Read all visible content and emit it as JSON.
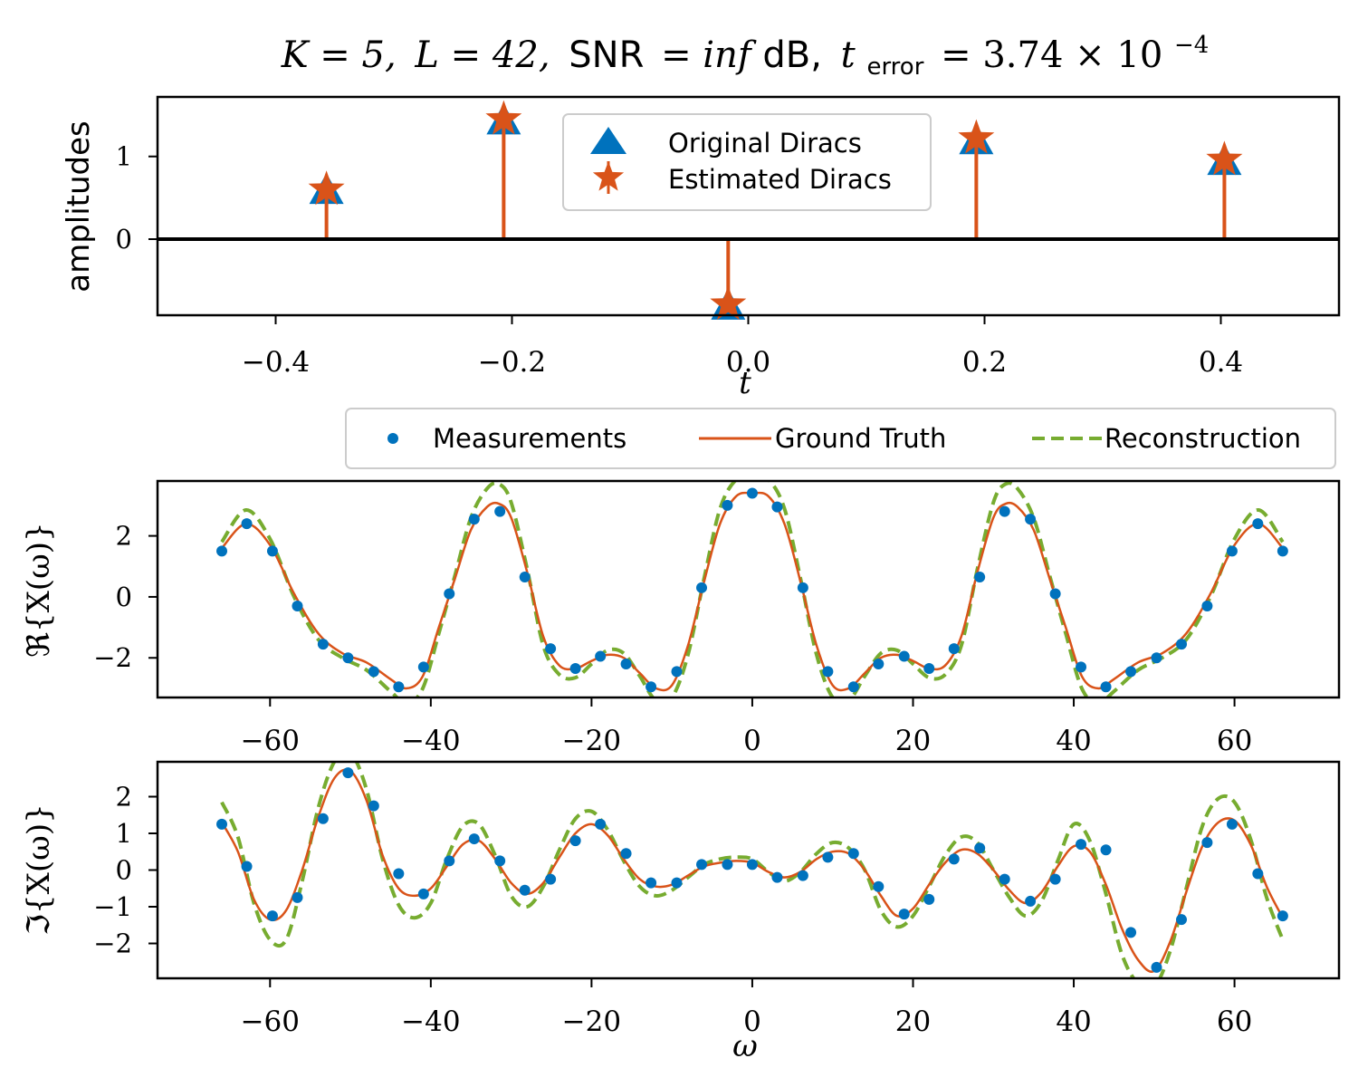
{
  "title": {
    "k_part": "K = 5,",
    "l_part": "L = 42,",
    "snr_label": "SNR",
    "snr_value": "= inf",
    "snr_unit": "dB,",
    "terr_var": "t",
    "terr_sub": "error",
    "terr_val": "= 3.74 × 10",
    "terr_exp": "−4"
  },
  "colors": {
    "original": "#0072BD",
    "estimated": "#D95319",
    "measurements": "#0072BD",
    "ground_truth": "#D95319",
    "reconstruction": "#77AC30"
  },
  "chart_data": [
    {
      "type": "stem",
      "xlabel": "t",
      "ylabel": "amplitudes",
      "xlim": [
        -0.5,
        0.5
      ],
      "ylim": [
        -0.92,
        1.72
      ],
      "xticks": [
        "−0.4",
        "−0.2",
        "0.0",
        "0.2",
        "0.4"
      ],
      "xtick_values": [
        -0.4,
        -0.2,
        0.0,
        0.2,
        0.4
      ],
      "yticks": [
        "0",
        "1"
      ],
      "ytick_values": [
        0,
        1
      ],
      "legend": {
        "position": "top-center",
        "entries": [
          "Original Diracs",
          "Estimated Diracs"
        ]
      },
      "series": [
        {
          "name": "Original Diracs",
          "marker": "triangle",
          "x": [
            -0.357,
            -0.207,
            -0.017,
            0.193,
            0.403
          ],
          "y": [
            0.58,
            1.42,
            -0.82,
            1.18,
            0.93
          ]
        },
        {
          "name": "Estimated Diracs",
          "marker": "star",
          "x": [
            -0.357,
            -0.207,
            -0.017,
            0.193,
            0.403
          ],
          "y": [
            0.6,
            1.45,
            -0.79,
            1.22,
            0.96
          ]
        }
      ]
    },
    {
      "type": "line",
      "xlabel": "",
      "ylabel": "ℜ{X(ω)}",
      "xlim": [
        -74,
        73
      ],
      "ylim": [
        -3.3,
        3.8
      ],
      "xticks": [
        "−60",
        "−40",
        "−20",
        "0",
        "20",
        "40",
        "60"
      ],
      "xtick_values": [
        -60,
        -40,
        -20,
        0,
        20,
        40,
        60
      ],
      "yticks": [
        "−2",
        "0",
        "2"
      ],
      "ytick_values": [
        -2,
        0,
        2
      ],
      "legend": {
        "position": "above",
        "entries": [
          "Measurements",
          "Ground Truth",
          "Reconstruction"
        ]
      },
      "series": [
        {
          "name": "Measurements",
          "x": [
            -66,
            -62.9,
            -59.7,
            -56.6,
            -53.4,
            -50.3,
            -47.1,
            -44,
            -40.9,
            -37.7,
            -34.6,
            -31.4,
            -28.3,
            -25.1,
            -22,
            -18.9,
            -15.7,
            -12.6,
            -9.4,
            -6.3,
            -3.1,
            0,
            3.1,
            6.3,
            9.4,
            12.6,
            15.7,
            18.9,
            22,
            25.1,
            28.3,
            31.4,
            34.6,
            37.7,
            40.9,
            44,
            47.1,
            50.3,
            53.4,
            56.6,
            59.7,
            62.9,
            66
          ],
          "y": [
            1.5,
            2.4,
            1.5,
            -0.3,
            -1.55,
            -2.0,
            -2.45,
            -2.95,
            -2.3,
            0.1,
            2.55,
            2.8,
            0.65,
            -1.7,
            -2.35,
            -1.95,
            -2.2,
            -2.95,
            -2.45,
            0.3,
            3.0,
            3.4,
            2.95,
            0.3,
            -2.45,
            -2.95,
            -2.2,
            -1.95,
            -2.35,
            -1.7,
            0.65,
            2.8,
            2.55,
            0.1,
            -2.3,
            -2.95,
            -2.45,
            -2.0,
            -1.55,
            -0.3,
            1.5,
            2.4,
            1.5
          ]
        },
        {
          "name": "Ground Truth",
          "x": [
            -66,
            -63,
            -60,
            -57,
            -54,
            -51,
            -48,
            -45,
            -43,
            -41,
            -39,
            -37,
            -35,
            -33,
            -31.5,
            -30,
            -28,
            -26,
            -24,
            -22,
            -20,
            -18,
            -16,
            -14,
            -12,
            -10,
            -8,
            -6,
            -4,
            -2,
            0,
            2,
            4,
            6,
            8,
            10,
            12,
            14,
            16,
            18,
            20,
            22,
            24,
            26,
            28,
            30,
            31.5,
            33,
            35,
            37,
            39,
            41,
            43,
            45,
            48,
            51,
            54,
            57,
            60,
            63,
            66
          ],
          "y": [
            1.6,
            2.4,
            1.7,
            0.1,
            -1.2,
            -1.85,
            -2.15,
            -2.7,
            -3.0,
            -2.6,
            -1.0,
            0.6,
            2.2,
            2.95,
            3.05,
            2.6,
            0.8,
            -1.3,
            -2.25,
            -2.35,
            -2.1,
            -1.9,
            -2.0,
            -2.5,
            -3.0,
            -2.9,
            -1.6,
            0.5,
            2.4,
            3.3,
            3.4,
            3.3,
            2.4,
            0.5,
            -1.6,
            -2.9,
            -3.0,
            -2.5,
            -2.0,
            -1.9,
            -2.1,
            -2.35,
            -2.25,
            -1.3,
            0.8,
            2.6,
            3.05,
            2.95,
            2.2,
            0.6,
            -1.0,
            -2.6,
            -3.0,
            -2.7,
            -2.15,
            -1.85,
            -1.2,
            0.1,
            1.7,
            2.4,
            1.6
          ]
        },
        {
          "name": "Reconstruction",
          "x": [
            -66,
            -63,
            -60,
            -57,
            -54,
            -51,
            -48,
            -45,
            -43,
            -41,
            -39,
            -37,
            -35,
            -33,
            -31.5,
            -30,
            -28,
            -26,
            -24,
            -22,
            -20,
            -18,
            -16,
            -14,
            -12,
            -10,
            -8,
            -6,
            -4,
            -2,
            0,
            2,
            4,
            6,
            8,
            10,
            12,
            14,
            16,
            18,
            20,
            22,
            24,
            26,
            28,
            30,
            31.5,
            33,
            35,
            37,
            39,
            41,
            43,
            45,
            48,
            51,
            54,
            57,
            60,
            63,
            66
          ],
          "y": [
            1.8,
            2.85,
            1.9,
            0.0,
            -1.4,
            -2.0,
            -2.4,
            -3.1,
            -3.5,
            -3.0,
            -1.2,
            0.7,
            2.6,
            3.55,
            3.7,
            3.1,
            0.9,
            -1.6,
            -2.55,
            -2.65,
            -2.2,
            -1.75,
            -1.85,
            -2.6,
            -3.4,
            -3.3,
            -1.9,
            0.6,
            2.9,
            3.85,
            4.0,
            3.85,
            2.9,
            0.6,
            -1.9,
            -3.3,
            -3.4,
            -2.6,
            -1.85,
            -1.75,
            -2.2,
            -2.65,
            -2.55,
            -1.6,
            0.9,
            3.1,
            3.7,
            3.55,
            2.6,
            0.7,
            -1.2,
            -3.0,
            -3.5,
            -3.1,
            -2.4,
            -2.0,
            -1.4,
            0.0,
            1.9,
            2.85,
            1.8
          ]
        }
      ]
    },
    {
      "type": "line",
      "xlabel": "ω",
      "ylabel": "ℑ{X(ω)}",
      "xlim": [
        -74,
        73
      ],
      "ylim": [
        -2.95,
        2.95
      ],
      "xticks": [
        "−60",
        "−40",
        "−20",
        "0",
        "20",
        "40",
        "60"
      ],
      "xtick_values": [
        -60,
        -40,
        -20,
        0,
        20,
        40,
        60
      ],
      "yticks": [
        "−2",
        "−1",
        "0",
        "1",
        "2"
      ],
      "ytick_values": [
        -2,
        -1,
        0,
        1,
        2
      ],
      "series": [
        {
          "name": "Measurements",
          "x": [
            -66,
            -62.9,
            -59.7,
            -56.6,
            -53.4,
            -50.3,
            -47.1,
            -44,
            -40.9,
            -37.7,
            -34.6,
            -31.4,
            -28.3,
            -25.1,
            -22,
            -18.9,
            -15.7,
            -12.6,
            -9.4,
            -6.3,
            -3.1,
            0,
            3.1,
            6.3,
            9.4,
            12.6,
            15.7,
            18.9,
            22,
            25.1,
            28.3,
            31.4,
            34.6,
            37.7,
            40.9,
            44,
            47.1,
            50.3,
            53.4,
            56.6,
            59.7,
            62.9,
            66
          ],
          "y": [
            1.25,
            0.1,
            -1.25,
            -0.75,
            1.4,
            2.65,
            1.75,
            -0.1,
            -0.65,
            0.25,
            0.85,
            0.25,
            -0.55,
            -0.25,
            0.8,
            1.25,
            0.45,
            -0.35,
            -0.35,
            0.15,
            0.15,
            0.15,
            -0.2,
            -0.15,
            0.35,
            0.45,
            -0.45,
            -1.2,
            -0.8,
            0.3,
            0.6,
            -0.25,
            -0.85,
            -0.25,
            0.7,
            0.55,
            -1.7,
            -2.65,
            -1.35,
            0.75,
            1.25,
            -0.1,
            -1.25
          ]
        },
        {
          "name": "Ground Truth",
          "x": [
            -66,
            -64,
            -62,
            -60,
            -58,
            -56,
            -54,
            -52,
            -50,
            -48,
            -46,
            -44,
            -42,
            -40,
            -38,
            -36,
            -34,
            -32,
            -30,
            -28,
            -26,
            -24,
            -22,
            -20,
            -18,
            -16,
            -14,
            -12,
            -10,
            -8,
            -6,
            -4,
            -2,
            0,
            2,
            4,
            6,
            8,
            10,
            12,
            14,
            16,
            18,
            20,
            22,
            24,
            26,
            28,
            30,
            32,
            34,
            36,
            38,
            40,
            42,
            44,
            46,
            48,
            50,
            52,
            54,
            56,
            58,
            60,
            62,
            64,
            66
          ],
          "y": [
            1.3,
            0.5,
            -0.8,
            -1.35,
            -1.1,
            0.0,
            1.45,
            2.5,
            2.7,
            1.9,
            0.4,
            -0.5,
            -0.7,
            -0.5,
            0.1,
            0.7,
            0.8,
            0.3,
            -0.35,
            -0.65,
            -0.35,
            0.35,
            1.0,
            1.25,
            0.95,
            0.3,
            -0.25,
            -0.45,
            -0.4,
            -0.15,
            0.1,
            0.2,
            0.25,
            0.2,
            -0.05,
            -0.2,
            -0.05,
            0.3,
            0.5,
            0.45,
            0.0,
            -0.7,
            -1.25,
            -1.05,
            -0.4,
            0.2,
            0.55,
            0.45,
            0.0,
            -0.55,
            -0.9,
            -0.6,
            0.1,
            0.65,
            0.5,
            -0.4,
            -1.6,
            -2.45,
            -2.75,
            -1.95,
            -0.6,
            0.65,
            1.3,
            1.35,
            0.7,
            -0.45,
            -1.3
          ]
        },
        {
          "name": "Reconstruction",
          "x": [
            -66,
            -64,
            -62,
            -60,
            -58,
            -56,
            -54,
            -52,
            -50,
            -48,
            -46,
            -44,
            -42,
            -40,
            -38,
            -36,
            -34,
            -32,
            -30,
            -28,
            -26,
            -24,
            -22,
            -20,
            -18,
            -16,
            -14,
            -12,
            -10,
            -8,
            -6,
            -4,
            -2,
            0,
            2,
            4,
            6,
            8,
            10,
            12,
            14,
            16,
            18,
            20,
            22,
            24,
            26,
            28,
            30,
            32,
            34,
            36,
            38,
            40,
            42,
            44,
            46,
            48,
            50,
            52,
            54,
            56,
            58,
            60,
            62,
            64,
            66
          ],
          "y": [
            1.85,
            0.9,
            -0.9,
            -1.9,
            -1.9,
            -0.3,
            1.7,
            2.95,
            3.2,
            2.2,
            0.3,
            -0.95,
            -1.3,
            -0.9,
            0.3,
            1.2,
            1.25,
            0.4,
            -0.7,
            -1.0,
            -0.45,
            0.55,
            1.4,
            1.6,
            1.1,
            0.25,
            -0.45,
            -0.7,
            -0.55,
            -0.2,
            0.15,
            0.3,
            0.35,
            0.3,
            -0.05,
            -0.3,
            -0.05,
            0.45,
            0.75,
            0.6,
            0.0,
            -1.1,
            -1.55,
            -1.25,
            -0.45,
            0.4,
            0.9,
            0.75,
            0.0,
            -0.75,
            -1.25,
            -0.85,
            0.25,
            1.25,
            0.8,
            -0.65,
            -2.3,
            -3.1,
            -3.2,
            -2.2,
            -0.5,
            1.2,
            1.95,
            1.85,
            0.85,
            -0.75,
            -1.9
          ]
        }
      ]
    }
  ]
}
